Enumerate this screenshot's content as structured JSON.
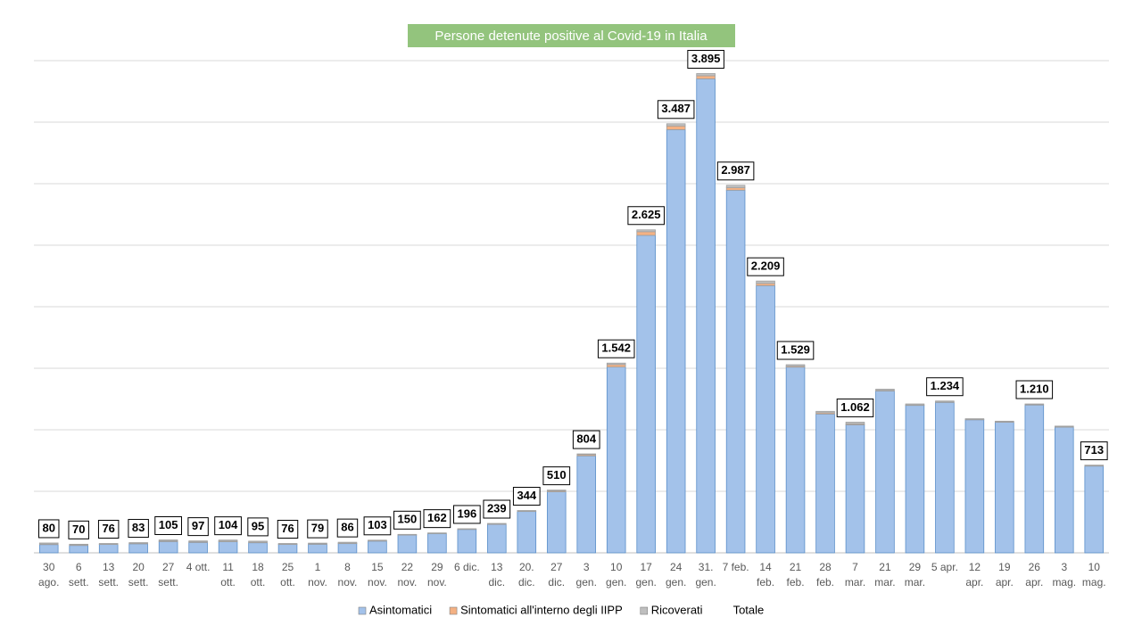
{
  "chart_data": {
    "type": "stacked_bar",
    "title": "Persone detenute  positive  al Covid-19 in Italia",
    "categories": [
      "30 ago.",
      "6 sett.",
      "13 sett.",
      "20 sett.",
      "27 sett.",
      "4 ott.",
      "11 ott.",
      "18 ott.",
      "25 ott.",
      "1 nov.",
      "8 nov.",
      "15 nov.",
      "22 nov.",
      "29 nov.",
      "6 dic.",
      "13 dic.",
      "20. dic.",
      "27 dic.",
      "3 gen.",
      "10 gen.",
      "17 gen.",
      "24 gen.",
      "31. gen.",
      "7 feb.",
      "14 feb.",
      "21 feb.",
      "28 feb.",
      "7 mar.",
      "21 mar.",
      "29 mar.",
      "5 apr.",
      "12 apr.",
      "19 apr.",
      "26 apr.",
      "3 mag.",
      "10 mag."
    ],
    "series": [
      {
        "name": "Asintomatici",
        "color": "#a3c2ea",
        "values": [
          67,
          60,
          68,
          73,
          91,
          84,
          90,
          82,
          68,
          69,
          75,
          95,
          144,
          156,
          190,
          231,
          336,
          496,
          788,
          1510,
          2580,
          3439,
          3852,
          2947,
          2171,
          1509,
          1128,
          1040,
          1315,
          1198,
          1222,
          1081,
          1061,
          1201,
          1021,
          705
        ]
      },
      {
        "name": "Sintomatici all'interno degli IIPP",
        "color": "#f4b183",
        "values": [
          5,
          4,
          3,
          4,
          6,
          6,
          6,
          5,
          3,
          4,
          4,
          3,
          2,
          2,
          2,
          3,
          3,
          8,
          10,
          20,
          30,
          30,
          25,
          20,
          18,
          8,
          10,
          8,
          5,
          4,
          4,
          3,
          3,
          3,
          3,
          3
        ]
      },
      {
        "name": "Ricoverati",
        "color": "#bfbfbf",
        "values": [
          8,
          6,
          5,
          6,
          8,
          7,
          8,
          8,
          5,
          6,
          7,
          5,
          4,
          4,
          4,
          5,
          5,
          6,
          6,
          12,
          15,
          18,
          18,
          20,
          20,
          12,
          12,
          14,
          10,
          8,
          8,
          6,
          6,
          6,
          6,
          5
        ]
      }
    ],
    "totals": {
      "name": "Totale",
      "values": [
        80,
        70,
        76,
        83,
        105,
        97,
        104,
        95,
        76,
        79,
        86,
        103,
        150,
        162,
        196,
        239,
        344,
        510,
        804,
        1542,
        2625,
        3487,
        3895,
        2987,
        2209,
        1529,
        1150,
        1062,
        1330,
        1210,
        1234,
        1090,
        1070,
        1210,
        1030,
        713
      ],
      "value_labels": [
        "80",
        "70",
        "76",
        "83",
        "105",
        "97",
        "104",
        "95",
        "76",
        "79",
        "86",
        "103",
        "150",
        "162",
        "196",
        "239",
        "344",
        "510",
        "804",
        "1.542",
        "2.625",
        "3.487",
        "3.895",
        "2.987",
        "2.209",
        "1.529",
        null,
        "1.062",
        null,
        null,
        "1.234",
        null,
        null,
        "1.210",
        null,
        "713"
      ]
    },
    "ylim": [
      0,
      4000
    ],
    "yticks": [
      0,
      500,
      1000,
      1500,
      2000,
      2500,
      3000,
      3500,
      4000
    ],
    "grid": true
  }
}
